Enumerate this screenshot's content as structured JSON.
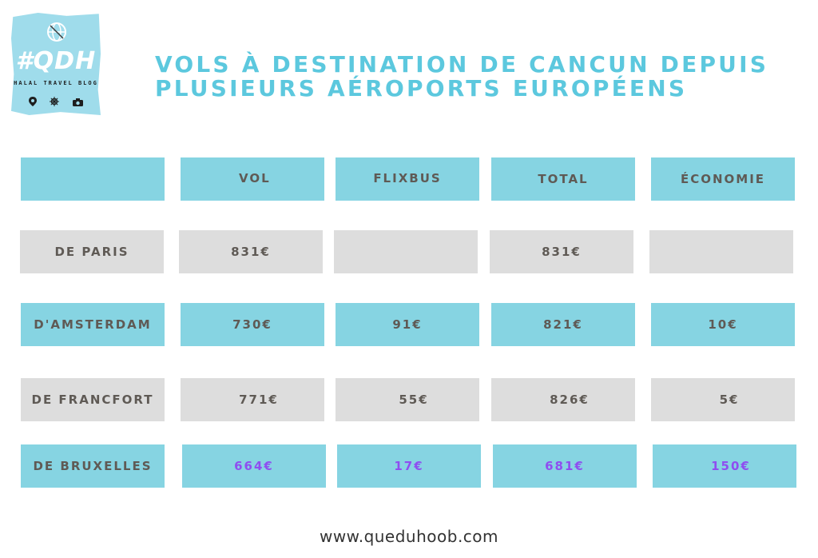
{
  "logo": {
    "brand": "#QDH",
    "tagline": "HALAL TRAVEL BLOG",
    "icons": [
      "map-pin-icon",
      "ship-wheel-icon",
      "camera-icon"
    ]
  },
  "title": {
    "line1": "VOLS À DESTINATION DE CANCUN DEPUIS",
    "line2": "PLUSIEURS AÉROPORTS EUROPÉENS"
  },
  "table": {
    "headers": [
      "",
      "VOL",
      "FLIXBUS",
      "TOTAL",
      "ÉCONOMIE"
    ],
    "rows": [
      {
        "cells": [
          "DE PARIS",
          "831€",
          "",
          "831€",
          ""
        ]
      },
      {
        "cells": [
          "D'AMSTERDAM",
          "730€",
          "91€",
          "821€",
          "10€"
        ]
      },
      {
        "cells": [
          "DE FRANCFORT",
          "771€",
          "55€",
          "826€",
          "5€"
        ]
      },
      {
        "cells": [
          "DE BRUXELLES",
          "664€",
          "17€",
          "681€",
          "150€"
        ]
      }
    ]
  },
  "colors": {
    "accent": "#5cc8de",
    "cell_blue": "#86d4e2",
    "cell_grey": "#dddddd",
    "highlight_purple": "#8f4ef0",
    "text_dark": "#5f5a55"
  },
  "footer": {
    "url": "www.queduhoob.com"
  }
}
